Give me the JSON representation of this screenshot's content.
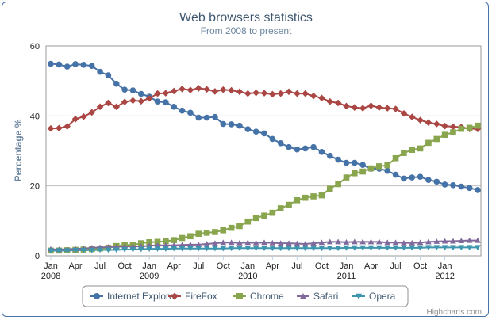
{
  "chart_data": {
    "type": "line",
    "title": "Web browsers statistics",
    "subtitle": "From 2008 to present",
    "xlabel": "",
    "ylabel": "Percentage %",
    "ylim": [
      0,
      60
    ],
    "yticks": [
      "0",
      "20",
      "40",
      "60"
    ],
    "grid": true,
    "legend_position": "bottom-center",
    "credit": "Highcharts.com",
    "x_tick_labels": [
      {
        "month": "Jan",
        "year": "2008",
        "index": 0
      },
      {
        "month": "Apr",
        "year": "",
        "index": 3
      },
      {
        "month": "Jul",
        "year": "",
        "index": 6
      },
      {
        "month": "Oct",
        "year": "",
        "index": 9
      },
      {
        "month": "Jan",
        "year": "2009",
        "index": 12
      },
      {
        "month": "Apr",
        "year": "",
        "index": 15
      },
      {
        "month": "Jul",
        "year": "",
        "index": 18
      },
      {
        "month": "Oct",
        "year": "",
        "index": 21
      },
      {
        "month": "Jan",
        "year": "2010",
        "index": 24
      },
      {
        "month": "Apr",
        "year": "",
        "index": 27
      },
      {
        "month": "Jul",
        "year": "",
        "index": 30
      },
      {
        "month": "Oct",
        "year": "",
        "index": 33
      },
      {
        "month": "Jan",
        "year": "2011",
        "index": 36
      },
      {
        "month": "Apr",
        "year": "",
        "index": 39
      },
      {
        "month": "Jul",
        "year": "",
        "index": 42
      },
      {
        "month": "Oct",
        "year": "",
        "index": 45
      },
      {
        "month": "Jan",
        "year": "2012",
        "index": 48
      }
    ],
    "x_start": "2008-01",
    "x_end": "2012-05",
    "series": [
      {
        "name": "Internet Explorer",
        "color": "#4572A7",
        "marker": "circle",
        "values": [
          54.9,
          54.7,
          54.1,
          54.8,
          54.6,
          54.3,
          52.6,
          51.6,
          49.2,
          47.5,
          47.3,
          46.3,
          45.5,
          44.1,
          43.9,
          42.6,
          41.5,
          40.9,
          39.5,
          39.5,
          39.7,
          37.7,
          37.6,
          37.2,
          36.2,
          35.5,
          35.0,
          33.4,
          32.2,
          31.1,
          30.4,
          30.7,
          31.1,
          29.7,
          28.6,
          27.5,
          26.6,
          26.6,
          26.0,
          24.9,
          24.9,
          24.3,
          23.2,
          22.1,
          22.4,
          22.6,
          21.7,
          21.2,
          20.4,
          20.2,
          19.8,
          19.4,
          18.8
        ]
      },
      {
        "name": "FireFox",
        "color": "#AA4643",
        "marker": "diamond",
        "values": [
          36.4,
          36.5,
          37.0,
          39.1,
          39.8,
          41.0,
          42.6,
          43.7,
          42.6,
          44.0,
          44.4,
          44.2,
          45.0,
          46.4,
          46.5,
          47.1,
          47.7,
          47.4,
          47.9,
          47.6,
          47.0,
          47.5,
          47.3,
          46.9,
          46.4,
          46.6,
          46.5,
          46.2,
          46.4,
          46.9,
          46.4,
          46.4,
          45.7,
          45.1,
          44.1,
          43.7,
          42.8,
          42.4,
          42.2,
          42.9,
          42.4,
          42.2,
          42.0,
          40.7,
          39.7,
          38.8,
          38.1,
          37.7,
          37.1,
          36.9,
          36.8,
          36.3,
          36.3
        ]
      },
      {
        "name": "Chrome",
        "color": "#89A54E",
        "marker": "square",
        "values": [
          1.5,
          1.5,
          1.6,
          1.7,
          1.8,
          1.9,
          2.1,
          2.3,
          2.8,
          3.1,
          3.1,
          3.6,
          3.9,
          4.0,
          4.2,
          4.5,
          5.1,
          5.6,
          6.3,
          6.6,
          6.8,
          7.3,
          8.0,
          8.5,
          9.8,
          10.8,
          11.5,
          12.3,
          13.6,
          14.6,
          15.9,
          16.6,
          17.0,
          17.3,
          19.2,
          20.5,
          22.4,
          23.6,
          24.1,
          25.0,
          25.6,
          25.9,
          27.9,
          29.4,
          30.3,
          30.7,
          32.3,
          33.4,
          34.6,
          35.3,
          36.3,
          36.6,
          37.2
        ]
      },
      {
        "name": "Safari",
        "color": "#80699B",
        "marker": "triangle",
        "values": [
          1.9,
          1.8,
          1.9,
          2.0,
          2.1,
          2.3,
          2.4,
          2.5,
          2.6,
          2.7,
          2.7,
          2.7,
          2.9,
          3.0,
          3.0,
          3.0,
          3.1,
          3.2,
          3.2,
          3.4,
          3.6,
          3.8,
          3.8,
          3.7,
          3.8,
          3.7,
          3.8,
          3.7,
          3.6,
          3.6,
          3.5,
          3.4,
          3.6,
          3.8,
          4.0,
          4.0,
          3.9,
          4.0,
          4.0,
          4.0,
          4.0,
          3.8,
          3.8,
          3.7,
          3.7,
          3.8,
          4.0,
          4.1,
          4.2,
          4.2,
          4.3,
          4.4,
          4.4
        ]
      },
      {
        "name": "Opera",
        "color": "#3D96AE",
        "marker": "triangle-down",
        "values": [
          1.5,
          1.5,
          1.5,
          1.6,
          1.6,
          1.6,
          1.7,
          1.7,
          1.7,
          1.8,
          1.8,
          1.9,
          2.0,
          2.0,
          2.0,
          2.1,
          2.1,
          2.1,
          2.1,
          2.1,
          2.1,
          2.1,
          2.2,
          2.2,
          2.2,
          2.2,
          2.2,
          2.2,
          2.2,
          2.2,
          2.2,
          2.2,
          2.2,
          2.2,
          2.2,
          2.2,
          2.3,
          2.3,
          2.3,
          2.3,
          2.3,
          2.3,
          2.3,
          2.3,
          2.3,
          2.3,
          2.4,
          2.4,
          2.4,
          2.4,
          2.4,
          2.4,
          2.4
        ]
      }
    ]
  }
}
